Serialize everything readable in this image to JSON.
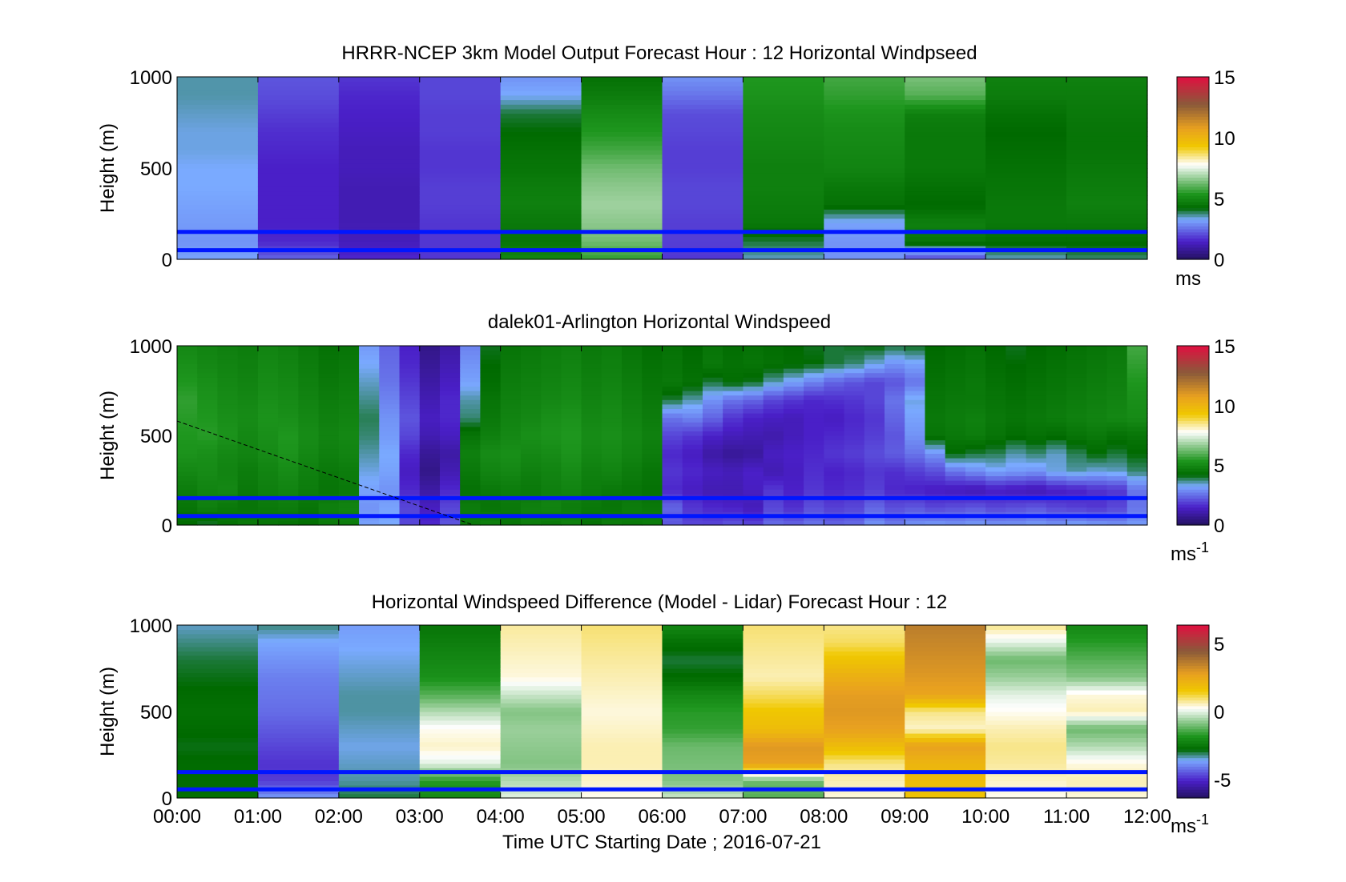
{
  "figure": {
    "x_tick_labels": [
      "00:00",
      "01:00",
      "02:00",
      "03:00",
      "04:00",
      "05:00",
      "06:00",
      "07:00",
      "08:00",
      "09:00",
      "10:00",
      "11:00",
      "12:00"
    ],
    "x_label": "Time UTC  Starting Date ; 2016-07-21"
  },
  "colors": {
    "deep_purple": "#23125e",
    "purple": "#4a1fc8",
    "light_blue": "#7aaaff",
    "green_dark": "#006a00",
    "green": "#1e961e",
    "green_light": "#8cc88c",
    "white": "#ffffff",
    "yellow": "#f0c800",
    "orange": "#e8a020",
    "brown": "#8a5a3a",
    "red": "#e01040",
    "gray": "#808080",
    "line_blue": "#0016ff"
  },
  "chart_data": [
    {
      "type": "heatmap",
      "title": "HRRR-NCEP 3km Model Output   Forecast Hour : 12 Horizontal Windpseed",
      "ylabel": "Height (m)",
      "xlabel": "",
      "y_ticks": [
        "1000",
        "500",
        "0"
      ],
      "ylim": [
        0,
        1000
      ],
      "xlim": [
        "00:00",
        "12:00"
      ],
      "time_columns": [
        "00:00",
        "01:00",
        "02:00",
        "03:00",
        "04:00",
        "05:00",
        "06:00",
        "07:00",
        "08:00",
        "09:00",
        "10:00",
        "11:00"
      ],
      "height_levels_m": [
        0,
        100,
        200,
        300,
        400,
        500,
        600,
        700,
        800,
        900,
        1000
      ],
      "windspeed_ms": [
        [
          3.2,
          2.4,
          1.6,
          1.8,
          5.0,
          5.6,
          1.8,
          3.5,
          3.0,
          2.0,
          3.5,
          3.8
        ],
        [
          3.0,
          1.6,
          1.3,
          1.8,
          4.5,
          6.3,
          1.9,
          4.0,
          3.0,
          4.5,
          4.3,
          4.3
        ],
        [
          3.1,
          1.5,
          1.2,
          1.8,
          4.6,
          6.6,
          1.9,
          4.6,
          3.2,
          4.8,
          4.6,
          4.6
        ],
        [
          3.2,
          1.5,
          1.2,
          1.9,
          4.8,
          6.8,
          2.0,
          4.7,
          4.4,
          4.2,
          4.6,
          4.8
        ],
        [
          3.3,
          1.5,
          1.2,
          1.9,
          4.7,
          6.6,
          2.0,
          4.8,
          4.6,
          4.4,
          4.5,
          4.7
        ],
        [
          3.3,
          1.5,
          1.3,
          1.8,
          4.5,
          6.3,
          1.9,
          4.8,
          4.9,
          4.6,
          4.4,
          4.6
        ],
        [
          3.4,
          1.6,
          1.3,
          1.8,
          4.4,
          5.8,
          1.9,
          4.9,
          5.0,
          4.6,
          4.3,
          4.5
        ],
        [
          3.4,
          1.7,
          1.4,
          1.9,
          4.2,
          5.4,
          2.0,
          5.0,
          5.1,
          4.6,
          4.2,
          4.5
        ],
        [
          3.5,
          1.9,
          1.5,
          1.9,
          4.0,
          5.1,
          2.1,
          5.1,
          5.3,
          4.8,
          4.4,
          4.6
        ],
        [
          3.6,
          2.1,
          1.6,
          2.0,
          3.3,
          4.7,
          2.6,
          5.3,
          5.6,
          6.0,
          4.7,
          4.7
        ],
        [
          3.6,
          2.2,
          1.8,
          2.0,
          3.0,
          4.4,
          3.0,
          5.4,
          5.8,
          6.4,
          4.8,
          4.8
        ]
      ],
      "colorbar": {
        "unit": "ms",
        "range": [
          0,
          15
        ],
        "ticks": [
          "15",
          "10",
          "5",
          "0"
        ]
      },
      "reference_lines_m": [
        50,
        150
      ]
    },
    {
      "type": "heatmap",
      "title": "dalek01-Arlington  Horizontal Windspeed",
      "ylabel": "Height (m)",
      "xlabel": "",
      "y_ticks": [
        "1000",
        "500",
        "0"
      ],
      "ylim": [
        0,
        1000
      ],
      "xlim": [
        "00:00",
        "12:00"
      ],
      "time_columns": [
        "00:00",
        "00:15",
        "00:30",
        "00:45",
        "01:00",
        "01:15",
        "01:30",
        "01:45",
        "02:00",
        "02:15",
        "02:30",
        "02:45",
        "03:00",
        "03:15",
        "03:30",
        "03:45",
        "04:00",
        "04:15",
        "04:30",
        "04:45",
        "05:00",
        "05:15",
        "05:30",
        "05:45",
        "06:00",
        "06:15",
        "06:30",
        "06:45",
        "07:00",
        "07:15",
        "07:30",
        "07:45",
        "08:00",
        "08:15",
        "08:30",
        "08:45",
        "09:00",
        "09:15",
        "09:30",
        "09:45",
        "10:00",
        "10:15",
        "10:30",
        "10:45",
        "11:00",
        "11:15",
        "11:30",
        "11:45"
      ],
      "height_levels_m": [
        0,
        100,
        200,
        300,
        400,
        500,
        600,
        700,
        800,
        900,
        1000
      ],
      "windspeed_ms": [
        [
          4.2,
          4.0,
          4.4,
          4.6,
          4.5,
          4.4,
          4.3,
          4.6,
          4.7,
          3.2,
          3.3,
          2.0,
          1.6,
          2.2,
          4.6,
          4.8,
          4.5,
          4.7,
          4.6,
          4.8,
          4.4,
          4.7,
          4.6,
          4.7,
          2.2,
          2.0,
          2.0,
          2.2,
          2.0,
          2.5,
          2.4,
          2.6,
          2.4,
          2.5,
          3.0,
          2.7,
          3.0,
          3.1,
          3.0,
          3.1,
          3.0,
          3.0,
          3.1,
          3.0,
          3.2,
          3.1,
          3.0,
          3.1
        ],
        [
          4.5,
          4.8,
          4.6,
          4.5,
          4.6,
          4.7,
          4.5,
          4.8,
          4.9,
          3.0,
          3.2,
          2.0,
          1.4,
          2.0,
          4.7,
          4.5,
          4.6,
          4.8,
          4.9,
          4.7,
          4.6,
          4.5,
          4.7,
          4.6,
          2.4,
          1.8,
          1.6,
          1.5,
          1.3,
          2.0,
          1.7,
          2.1,
          1.9,
          2.0,
          2.4,
          2.1,
          2.2,
          2.0,
          2.1,
          2.2,
          2.0,
          2.1,
          2.2,
          2.0,
          1.9,
          1.8,
          2.0,
          2.6
        ],
        [
          4.7,
          4.9,
          5.0,
          4.6,
          4.8,
          4.9,
          4.7,
          4.5,
          4.6,
          3.2,
          3.0,
          1.6,
          1.0,
          1.6,
          4.4,
          4.6,
          4.7,
          4.6,
          4.8,
          4.9,
          4.7,
          4.6,
          4.5,
          4.4,
          1.6,
          1.4,
          1.2,
          1.2,
          1.4,
          1.8,
          1.5,
          1.8,
          1.6,
          1.7,
          1.9,
          1.6,
          1.5,
          1.4,
          1.3,
          1.2,
          1.4,
          1.3,
          1.2,
          1.4,
          1.5,
          1.7,
          1.8,
          2.6
        ],
        [
          5.0,
          5.1,
          4.9,
          4.7,
          4.9,
          5.1,
          4.8,
          4.6,
          4.7,
          3.4,
          3.2,
          1.4,
          0.6,
          1.2,
          4.6,
          4.9,
          5.0,
          4.8,
          4.9,
          5.1,
          4.8,
          4.9,
          4.7,
          4.5,
          1.8,
          1.6,
          1.4,
          1.3,
          1.5,
          1.2,
          1.4,
          1.7,
          1.5,
          1.6,
          1.8,
          1.7,
          1.9,
          2.1,
          2.6,
          2.9,
          3.2,
          3.1,
          3.0,
          3.4,
          3.6,
          3.4,
          3.5,
          3.8
        ],
        [
          5.3,
          5.2,
          5.0,
          4.9,
          5.1,
          5.3,
          5.0,
          4.8,
          4.9,
          3.6,
          3.3,
          1.6,
          0.8,
          1.0,
          4.8,
          5.1,
          5.2,
          5.0,
          5.1,
          5.3,
          5.0,
          5.1,
          4.9,
          4.7,
          1.6,
          1.4,
          1.0,
          0.8,
          0.9,
          1.4,
          1.5,
          1.6,
          1.8,
          1.9,
          2.1,
          2.3,
          2.6,
          3.0,
          4.2,
          4.0,
          3.9,
          3.6,
          3.8,
          3.5,
          3.9,
          4.2,
          4.0,
          4.2
        ],
        [
          5.4,
          5.5,
          5.3,
          5.0,
          5.2,
          5.4,
          5.1,
          4.9,
          5.0,
          3.8,
          3.1,
          2.0,
          1.2,
          1.4,
          4.5,
          4.8,
          5.0,
          5.2,
          5.3,
          5.4,
          5.1,
          5.2,
          5.0,
          4.8,
          2.0,
          1.8,
          1.5,
          1.3,
          1.2,
          1.1,
          1.3,
          1.5,
          1.6,
          1.7,
          1.9,
          2.2,
          3.0,
          4.5,
          4.6,
          4.7,
          4.5,
          4.3,
          4.4,
          4.3,
          4.5,
          4.6,
          4.4,
          4.5
        ],
        [
          5.5,
          5.4,
          5.2,
          5.1,
          5.3,
          5.2,
          5.0,
          4.8,
          4.9,
          3.9,
          3.0,
          2.2,
          1.4,
          1.6,
          3.8,
          4.6,
          4.9,
          5.0,
          5.2,
          5.3,
          5.0,
          5.1,
          4.9,
          4.7,
          2.6,
          2.8,
          2.4,
          1.8,
          1.5,
          1.4,
          1.3,
          1.5,
          1.4,
          1.6,
          1.8,
          2.4,
          3.2,
          4.6,
          4.7,
          4.8,
          4.6,
          4.5,
          4.6,
          4.7,
          4.8,
          4.9,
          5.0,
          5.1
        ],
        [
          5.6,
          5.3,
          5.1,
          5.0,
          5.2,
          5.1,
          4.9,
          4.7,
          4.8,
          3.7,
          2.8,
          2.0,
          1.2,
          1.6,
          3.6,
          4.5,
          4.8,
          4.9,
          5.0,
          5.1,
          4.9,
          5.0,
          4.8,
          4.6,
          4.0,
          3.6,
          3.0,
          2.6,
          2.4,
          2.0,
          1.8,
          1.6,
          1.7,
          1.8,
          2.0,
          2.6,
          3.4,
          4.5,
          4.6,
          4.6,
          4.5,
          4.4,
          4.5,
          4.6,
          4.7,
          4.8,
          4.9,
          5.2
        ],
        [
          5.4,
          5.2,
          5.0,
          4.9,
          5.1,
          5.0,
          4.8,
          4.6,
          4.7,
          3.5,
          2.6,
          1.8,
          1.0,
          1.4,
          3.2,
          4.3,
          4.7,
          4.8,
          4.9,
          5.0,
          4.8,
          4.9,
          4.7,
          4.5,
          4.6,
          4.4,
          4.0,
          4.3,
          4.1,
          3.6,
          3.2,
          2.8,
          2.4,
          2.2,
          2.0,
          2.2,
          2.6,
          4.4,
          4.5,
          4.6,
          4.4,
          4.3,
          4.4,
          4.5,
          4.6,
          4.7,
          4.8,
          5.4
        ],
        [
          5.2,
          5.0,
          4.9,
          4.8,
          5.0,
          4.9,
          4.7,
          4.5,
          4.6,
          3.3,
          2.5,
          1.6,
          0.8,
          1.2,
          3.0,
          4.2,
          4.6,
          4.7,
          4.8,
          4.9,
          4.7,
          4.8,
          4.6,
          4.4,
          4.5,
          4.3,
          4.6,
          4.4,
          4.5,
          4.4,
          4.3,
          4.2,
          4.0,
          3.8,
          3.4,
          3.0,
          3.2,
          4.3,
          4.4,
          4.5,
          4.3,
          4.2,
          4.3,
          4.4,
          4.5,
          4.6,
          4.7,
          5.6
        ],
        [
          5.0,
          4.9,
          4.8,
          4.7,
          4.9,
          4.8,
          4.6,
          4.4,
          4.5,
          3.1,
          2.4,
          1.5,
          0.6,
          1.0,
          2.8,
          4.1,
          4.5,
          4.6,
          4.7,
          4.8,
          4.6,
          4.7,
          4.5,
          4.3,
          4.4,
          4.2,
          4.5,
          4.3,
          4.4,
          4.3,
          4.2,
          4.1,
          4.0,
          4.1,
          4.2,
          4.0,
          4.1,
          4.2,
          4.3,
          4.4,
          4.2,
          4.1,
          4.2,
          4.3,
          4.4,
          4.5,
          4.6,
          5.8
        ]
      ],
      "colorbar": {
        "unit": "ms",
        "unit_superscript": "-1",
        "range": [
          0,
          15
        ],
        "ticks": [
          "15",
          "10",
          "5",
          "0"
        ]
      },
      "dashed_line": {
        "from": [
          "00:00",
          580
        ],
        "to": [
          "03:40",
          0
        ]
      },
      "reference_lines_m": [
        50,
        150
      ]
    },
    {
      "type": "heatmap",
      "title": "Horizontal Windspeed Difference (Model - Lidar) Forecast Hour : 12",
      "ylabel": "Height (m)",
      "xlabel": "Time UTC  Starting Date ; 2016-07-21",
      "y_ticks": [
        "1000",
        "500",
        "0"
      ],
      "ylim": [
        0,
        1000
      ],
      "xlim": [
        "00:00",
        "12:00"
      ],
      "time_columns": [
        "00:00",
        "01:00",
        "02:00",
        "03:00",
        "04:00",
        "05:00",
        "06:00",
        "07:00",
        "08:00",
        "09:00",
        "10:00",
        "11:00"
      ],
      "height_levels_m": [
        0,
        100,
        200,
        300,
        400,
        500,
        600,
        700,
        800,
        900,
        1000
      ],
      "difference_ms": [
        [
          -2.5,
          -3.5,
          -2.8,
          -2.0,
          0.0,
          0.3,
          -0.2,
          -1.2,
          0.4,
          1.6,
          0.3,
          0.4
        ],
        [
          -2.6,
          -4.5,
          -3.1,
          -1.6,
          -0.4,
          0.5,
          -0.8,
          -1.0,
          0.6,
          1.8,
          0.5,
          0.6
        ],
        [
          -2.6,
          -4.6,
          -3.2,
          0.0,
          -0.8,
          0.6,
          -0.9,
          2.6,
          0.8,
          2.0,
          0.7,
          0.4
        ],
        [
          -2.7,
          -4.4,
          -3.3,
          0.5,
          -0.7,
          0.6,
          -1.0,
          2.8,
          1.8,
          2.6,
          0.8,
          -0.4
        ],
        [
          -2.6,
          -4.2,
          -3.2,
          0.3,
          -0.6,
          0.5,
          -1.5,
          1.8,
          2.6,
          0.5,
          0.6,
          -1.0
        ],
        [
          -2.5,
          -4.0,
          -3.1,
          -0.4,
          -0.8,
          0.4,
          -1.6,
          1.5,
          2.8,
          0.8,
          0.3,
          0.6
        ],
        [
          -2.6,
          -3.9,
          -3.1,
          -1.2,
          -0.2,
          0.5,
          -2.0,
          1.0,
          2.7,
          2.5,
          0.0,
          0.4
        ],
        [
          -2.7,
          -3.8,
          -3.2,
          -1.8,
          0.4,
          0.6,
          -2.6,
          0.6,
          2.2,
          2.8,
          -0.6,
          -0.8
        ],
        [
          -2.8,
          -3.6,
          -3.3,
          -2.0,
          0.5,
          0.7,
          -2.8,
          0.7,
          1.6,
          3.0,
          -1.0,
          -1.2
        ],
        [
          -3.0,
          -3.4,
          -3.4,
          -2.2,
          0.6,
          0.8,
          -2.5,
          0.8,
          1.0,
          3.2,
          0.0,
          -1.6
        ],
        [
          -3.2,
          -3.0,
          -3.5,
          -2.4,
          0.7,
          0.9,
          -2.0,
          0.9,
          0.8,
          3.4,
          0.8,
          -2.0
        ]
      ],
      "colorbar": {
        "unit": "ms",
        "unit_superscript": "-1",
        "range": [
          -6,
          6
        ],
        "ticks": [
          "5",
          "0",
          "-5"
        ]
      },
      "reference_lines_m": [
        50,
        150
      ]
    }
  ]
}
